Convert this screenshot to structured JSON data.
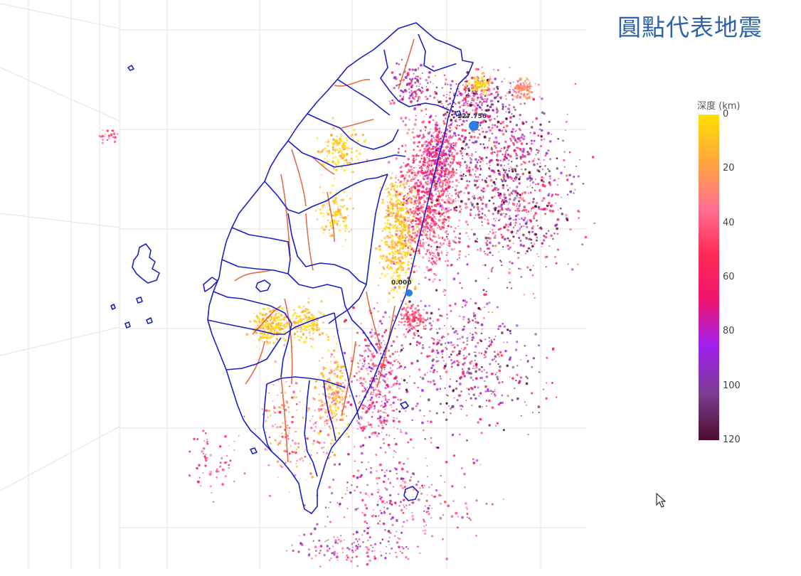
{
  "header": {
    "title": "圓點代表地震"
  },
  "colorbar": {
    "title": "深度 (km)",
    "ticks": [
      "0",
      "20",
      "40",
      "60",
      "80",
      "100",
      "120"
    ],
    "range": [
      0,
      120
    ],
    "colors": [
      "#ffe100",
      "#ffa83c",
      "#ff6f91",
      "#ff2a55",
      "#f0146e",
      "#a020f0",
      "#7a3d8e",
      "#4e0a2e"
    ]
  },
  "map": {
    "boundary_color": "#1a1ec8",
    "fault_color": "#e0522a",
    "markers": [
      {
        "label": "227.756"
      },
      {
        "label": "0.000"
      }
    ]
  }
}
